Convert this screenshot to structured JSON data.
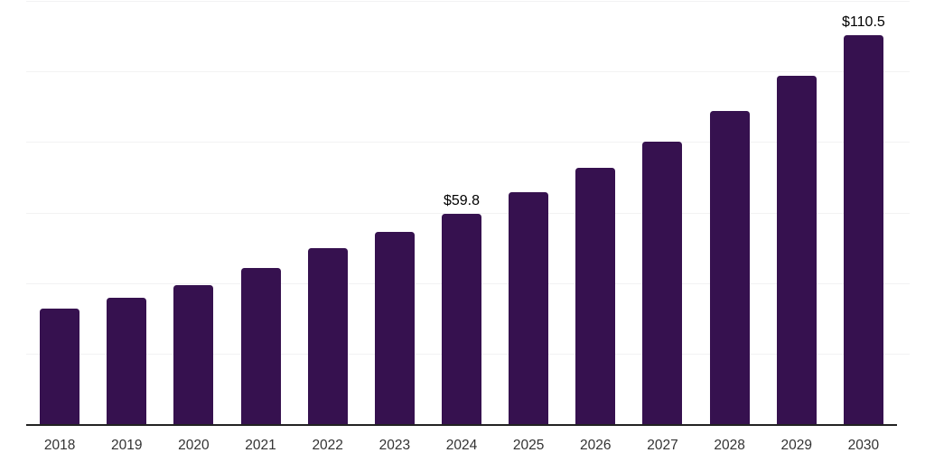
{
  "chart_data": {
    "type": "bar",
    "title": "",
    "xlabel": "",
    "ylabel": "",
    "categories": [
      "2018",
      "2019",
      "2020",
      "2021",
      "2022",
      "2023",
      "2024",
      "2025",
      "2026",
      "2027",
      "2028",
      "2029",
      "2030"
    ],
    "values": [
      33.0,
      36.0,
      39.6,
      44.5,
      50.2,
      54.7,
      59.8,
      65.9,
      72.8,
      80.4,
      89.0,
      99.0,
      110.5
    ],
    "data_labels": {
      "2024": "$59.8",
      "2030": "$110.5"
    },
    "ylim": [
      0,
      120
    ],
    "gridline_step": 20,
    "grid": "horizontal-only",
    "legend": "none",
    "y_tick_labels_visible": false,
    "bar_color": "#36114F",
    "background_color": "#FFFFFF",
    "gridline_color": "#F2F2F3",
    "axis_line_color": "#222222",
    "tick_label_color": "#333333",
    "value_label_color": "#000000"
  }
}
